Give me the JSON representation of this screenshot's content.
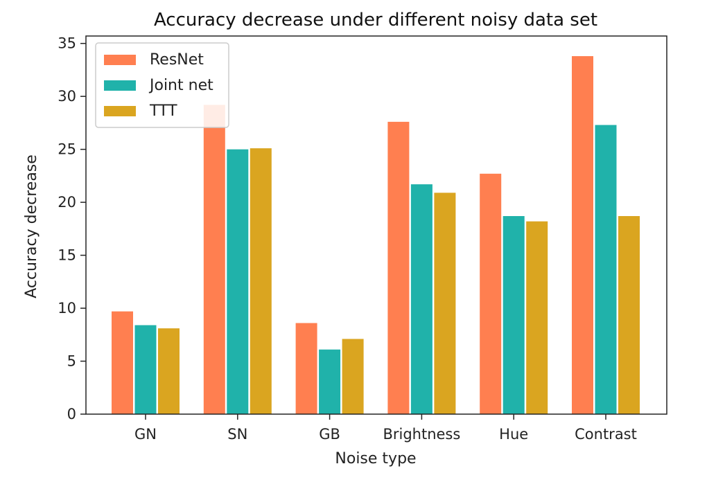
{
  "chart_data": {
    "type": "bar",
    "title": "Accuracy decrease under different noisy data set",
    "xlabel": "Noise type",
    "ylabel": "Accuracy decrease",
    "categories": [
      "GN",
      "SN",
      "GB",
      "Brightness",
      "Hue",
      "Contrast"
    ],
    "series": [
      {
        "name": "ResNet",
        "color": "#FF7F50",
        "values": [
          9.7,
          29.2,
          8.6,
          27.6,
          22.7,
          33.8
        ]
      },
      {
        "name": "Joint net",
        "color": "#20B2AA",
        "values": [
          8.4,
          25.0,
          6.1,
          21.7,
          18.7,
          27.3
        ]
      },
      {
        "name": "TTT",
        "color": "#DAA520",
        "values": [
          8.1,
          25.1,
          7.1,
          20.9,
          18.2,
          18.7
        ]
      }
    ],
    "yticks": [
      0,
      5,
      10,
      15,
      20,
      25,
      30,
      35
    ],
    "ylim": [
      0,
      35.7
    ],
    "grid": false,
    "legend_position": "top-left"
  }
}
